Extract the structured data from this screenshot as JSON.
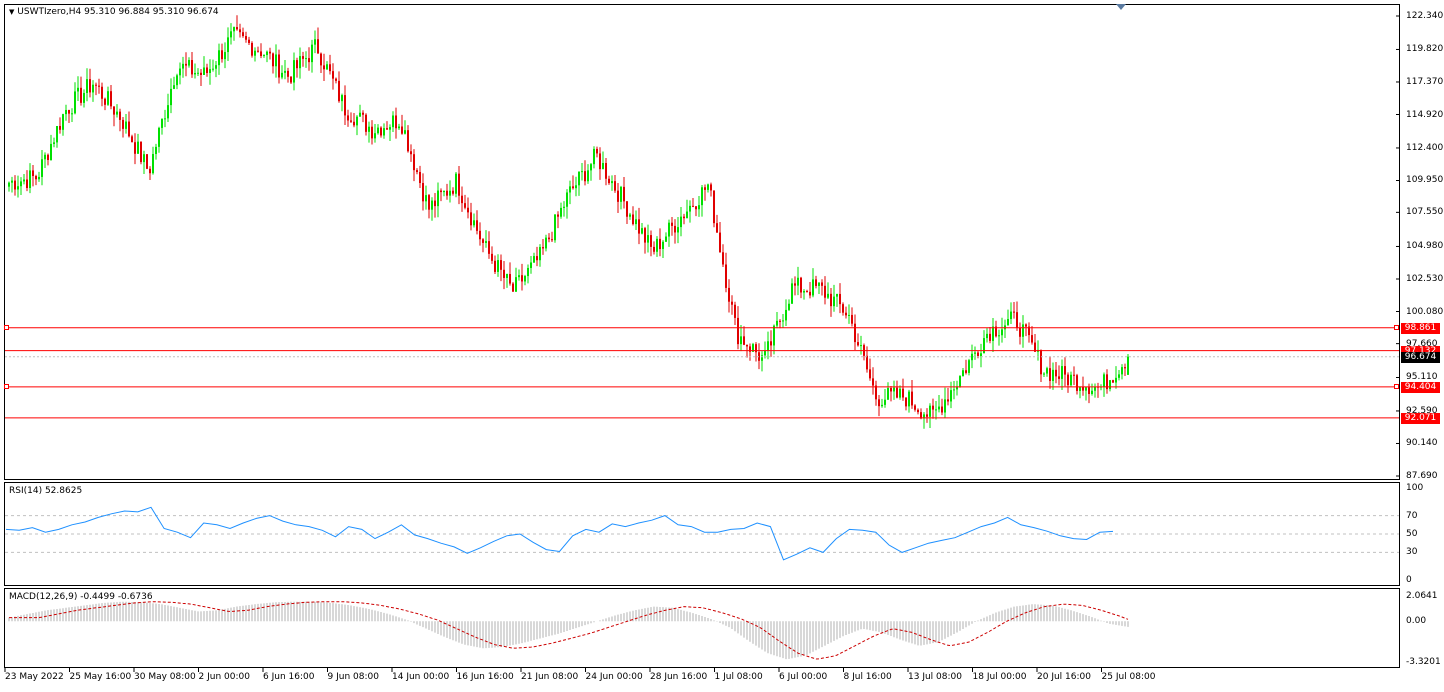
{
  "chart_title": "USWTIzero,H4  95.310 96.884 95.310 96.674",
  "rsi_title": "RSI(14) 52.8625",
  "macd_title": "MACD(12,26,9) -0.4499 -0.6736",
  "colors": {
    "bull": "#00e000",
    "bear": "#e00000",
    "level": "#ff0000",
    "rsi": "#1e90ff",
    "macd_signal": "#cc0000",
    "macd_hist": "#b0b0b0"
  },
  "price_axis": {
    "ticks": [
      "122.340",
      "119.820",
      "117.370",
      "114.920",
      "112.400",
      "109.950",
      "107.550",
      "104.980",
      "102.530",
      "100.080",
      "97.660",
      "95.110",
      "92.590",
      "90.140",
      "87.690"
    ]
  },
  "current_price": "96.674",
  "levels": [
    {
      "label": "98.861",
      "value": 98.861
    },
    {
      "label": "97.132",
      "value": 97.132
    },
    {
      "label": "94.404",
      "value": 94.404
    },
    {
      "label": "92.071",
      "value": 92.071
    }
  ],
  "rsi_axis": {
    "ticks": [
      "100",
      "70",
      "50",
      "30",
      "0"
    ]
  },
  "macd_axis": {
    "ticks": [
      "2.0641",
      "0.00",
      "-3.3201"
    ]
  },
  "time_axis": {
    "labels": [
      "23 May 2022",
      "25 May 16:00",
      "30 May 08:00",
      "2 Jun 00:00",
      "6 Jun 16:00",
      "9 Jun 08:00",
      "14 Jun 00:00",
      "16 Jun 16:00",
      "21 Jun 08:00",
      "24 Jun 00:00",
      "28 Jun 16:00",
      "1 Jul 08:00",
      "6 Jul 00:00",
      "8 Jul 16:00",
      "13 Jul 08:00",
      "18 Jul 00:00",
      "20 Jul 16:00",
      "25 Jul 08:00"
    ]
  },
  "chart_data": [
    {
      "type": "candlestick",
      "symbol": "USWTIzero",
      "timeframe": "H4",
      "ylim": [
        87.69,
        122.34
      ],
      "x_range": [
        "23 May 2022",
        "26 Jul 2022"
      ],
      "close_path": [
        {
          "x": "23 May 2022",
          "close": 109.8
        },
        {
          "x": "25 May 16:00",
          "close": 110.2
        },
        {
          "x": "27 May",
          "close": 115.2
        },
        {
          "x": "30 May 08:00",
          "close": 117.3
        },
        {
          "x": "31 May",
          "close": 114.7
        },
        {
          "x": "1 Jun",
          "close": 110.6
        },
        {
          "x": "3 Jun",
          "close": 118.6
        },
        {
          "x": "6 Jun 16:00",
          "close": 117.9
        },
        {
          "x": "8 Jun",
          "close": 120.8
        },
        {
          "x": "9 Jun 08:00",
          "close": 119.8
        },
        {
          "x": "13 Jun",
          "close": 117.8
        },
        {
          "x": "14 Jun 00:00",
          "close": 120.1
        },
        {
          "x": "15 Jun",
          "close": 115.4
        },
        {
          "x": "16 Jun 16:00",
          "close": 113.8
        },
        {
          "x": "17 Jun",
          "close": 114.6
        },
        {
          "x": "20 Jun",
          "close": 107.8
        },
        {
          "x": "21 Jun 08:00",
          "close": 109.9
        },
        {
          "x": "22 Jun",
          "close": 104.9
        },
        {
          "x": "23 Jun",
          "close": 101.6
        },
        {
          "x": "24 Jun 00:00",
          "close": 104.2
        },
        {
          "x": "27 Jun",
          "close": 108.9
        },
        {
          "x": "28 Jun 16:00",
          "close": 111.8
        },
        {
          "x": "29 Jun",
          "close": 108.3
        },
        {
          "x": "30 Jun",
          "close": 104.6
        },
        {
          "x": "1 Jul 08:00",
          "close": 107.2
        },
        {
          "x": "4 Jul",
          "close": 109.6
        },
        {
          "x": "5 Jul",
          "close": 98.5
        },
        {
          "x": "6 Jul 00:00",
          "close": 96.4
        },
        {
          "x": "7 Jul",
          "close": 101.9
        },
        {
          "x": "8 Jul 16:00",
          "close": 101.8
        },
        {
          "x": "11 Jul",
          "close": 99.9
        },
        {
          "x": "12 Jul",
          "close": 93.6
        },
        {
          "x": "13 Jul 08:00",
          "close": 93.7
        },
        {
          "x": "14 Jul",
          "close": 92.1
        },
        {
          "x": "15 Jul",
          "close": 95.2
        },
        {
          "x": "18 Jul 00:00",
          "close": 98.6
        },
        {
          "x": "19 Jul",
          "close": 99.5
        },
        {
          "x": "20 Jul 16:00",
          "close": 95.7
        },
        {
          "x": "22 Jul",
          "close": 95.0
        },
        {
          "x": "25 Jul 08:00",
          "close": 94.3
        },
        {
          "x": "26 Jul",
          "close": 96.674
        }
      ],
      "last_bar": {
        "open": 95.31,
        "high": 96.884,
        "low": 95.31,
        "close": 96.674
      }
    },
    {
      "type": "line",
      "name": "RSI(14)",
      "ylim": [
        0,
        100
      ],
      "levels": [
        70,
        50,
        30
      ],
      "values": [
        55,
        54,
        57,
        52,
        55,
        60,
        63,
        68,
        72,
        75,
        74,
        79,
        56,
        52,
        46,
        62,
        60,
        56,
        62,
        67,
        70,
        64,
        60,
        58,
        54,
        47,
        58,
        55,
        45,
        52,
        60,
        49,
        45,
        40,
        36,
        29,
        35,
        42,
        48,
        50,
        41,
        33,
        31,
        48,
        55,
        52,
        61,
        58,
        62,
        65,
        70,
        60,
        58,
        52,
        52,
        55,
        56,
        62,
        58,
        22,
        28,
        35,
        30,
        45,
        55,
        54,
        52,
        38,
        30,
        35,
        40,
        43,
        46,
        52,
        58,
        62,
        68,
        60,
        57,
        53,
        48,
        45,
        44,
        52,
        52.86
      ]
    },
    {
      "type": "bar+line",
      "name": "MACD(12,26,9)",
      "ylim": [
        -3.3201,
        2.0641
      ],
      "values": [
        0.3,
        0.6,
        0.9,
        1.1,
        1.3,
        1.5,
        1.6,
        1.55,
        1.4,
        1.1,
        0.8,
        0.9,
        1.2,
        1.4,
        1.55,
        1.6,
        1.6,
        1.5,
        1.3,
        1.0,
        0.6,
        0.1,
        -0.6,
        -1.3,
        -1.9,
        -2.2,
        -2.1,
        -1.8,
        -1.4,
        -1.0,
        -0.5,
        0.0,
        0.5,
        0.9,
        1.2,
        1.1,
        0.7,
        0.2,
        -0.5,
        -1.6,
        -2.6,
        -3.1,
        -2.8,
        -2.0,
        -1.2,
        -0.6,
        -0.9,
        -1.5,
        -2.0,
        -1.7,
        -0.9,
        0.0,
        0.7,
        1.2,
        1.4,
        1.3,
        0.9,
        0.4,
        -0.2,
        -0.45
      ],
      "last_main": -0.4499,
      "last_signal": -0.6736
    }
  ]
}
